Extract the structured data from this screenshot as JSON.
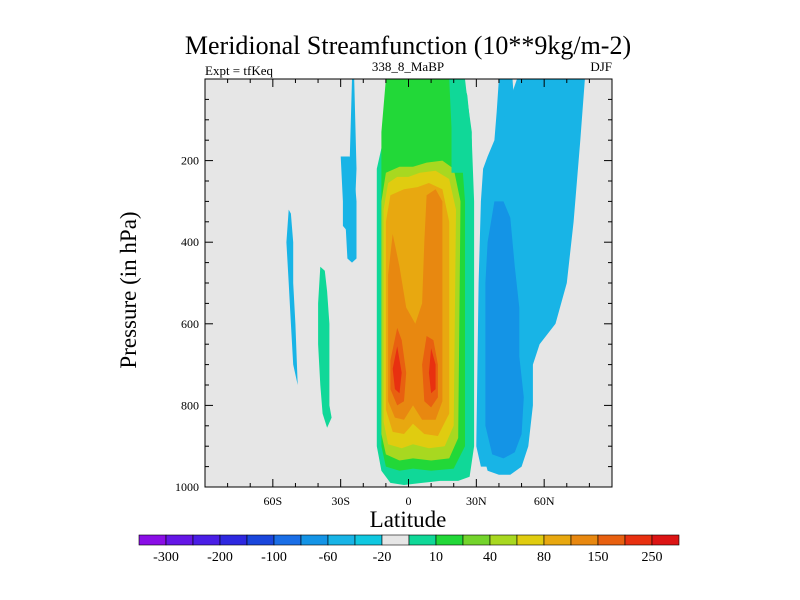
{
  "chart_data": {
    "type": "contour",
    "title": "Meridional Streamfunction (10**9kg/m-2)",
    "left_subtitle": "Expt = tfKeq",
    "center_subtitle": "338_8_MaBP",
    "right_subtitle": "DJF",
    "xlabel": "Latitude",
    "ylabel": "Pressure (in hPa)",
    "xlim": [
      -90,
      90
    ],
    "ylim": [
      1000,
      0
    ],
    "x_ticks": [
      {
        "value": -60,
        "label": "60S"
      },
      {
        "value": -30,
        "label": "30S"
      },
      {
        "value": 0,
        "label": "0"
      },
      {
        "value": 30,
        "label": "30N"
      },
      {
        "value": 60,
        "label": "60N"
      }
    ],
    "y_ticks": [
      {
        "value": 200,
        "label": "200"
      },
      {
        "value": 400,
        "label": "400"
      },
      {
        "value": 600,
        "label": "600"
      },
      {
        "value": 800,
        "label": "800"
      },
      {
        "value": 1000,
        "label": "1000"
      }
    ],
    "colorbar": {
      "colors": [
        "#8a0ee6",
        "#6416e6",
        "#4a1ee6",
        "#2e28e0",
        "#1a46dc",
        "#1a6ee6",
        "#1494e6",
        "#18b4e6",
        "#10c8e0",
        "#e6e6e6",
        "#10d898",
        "#22d838",
        "#74d42c",
        "#a8d820",
        "#e0cc10",
        "#e8a810",
        "#e88810",
        "#e86010",
        "#e83010",
        "#dc1414"
      ],
      "labels": [
        "-300",
        "-200",
        "-100",
        "-60",
        "-20",
        "10",
        "40",
        "80",
        "150",
        "250"
      ]
    },
    "regions": [
      {
        "value_class": 10,
        "color": "#10d898",
        "points": [
          [
            -2,
            0
          ],
          [
            -4,
            60
          ],
          [
            -10,
            120
          ],
          [
            -12,
            170
          ],
          [
            -14,
            220
          ],
          [
            -14,
            900
          ],
          [
            -12,
            960
          ],
          [
            -8,
            990
          ],
          [
            -2,
            995
          ],
          [
            6,
            990
          ],
          [
            14,
            985
          ],
          [
            22,
            985
          ],
          [
            27,
            975
          ],
          [
            29,
            900
          ],
          [
            29,
            300
          ],
          [
            28,
            150
          ],
          [
            26,
            40
          ],
          [
            24,
            0
          ]
        ]
      },
      {
        "value_class": 10,
        "color": "#10d898",
        "points": [
          [
            -39,
            460
          ],
          [
            -37,
            470
          ],
          [
            -36,
            520
          ],
          [
            -35,
            600
          ],
          [
            -35,
            700
          ],
          [
            -35,
            800
          ],
          [
            -34,
            830
          ],
          [
            -36,
            855
          ],
          [
            -38,
            820
          ],
          [
            -39,
            750
          ],
          [
            -40,
            650
          ],
          [
            -40,
            550
          ]
        ]
      },
      {
        "value_class": 40,
        "color": "#22d838",
        "points": [
          [
            -10,
            0
          ],
          [
            -12,
            130
          ],
          [
            -12,
            230
          ],
          [
            -12,
            900
          ],
          [
            -10,
            950
          ],
          [
            -4,
            960
          ],
          [
            2,
            955
          ],
          [
            10,
            960
          ],
          [
            20,
            955
          ],
          [
            25,
            900
          ],
          [
            25,
            300
          ],
          [
            23,
            150
          ],
          [
            20,
            60
          ],
          [
            18,
            0
          ]
        ]
      },
      {
        "value_class": 80,
        "color": "#a8d820",
        "points": [
          [
            -10,
            230
          ],
          [
            -12,
            300
          ],
          [
            -12,
            870
          ],
          [
            -10,
            920
          ],
          [
            -4,
            935
          ],
          [
            2,
            930
          ],
          [
            10,
            935
          ],
          [
            18,
            930
          ],
          [
            22,
            880
          ],
          [
            23,
            300
          ],
          [
            20,
            220
          ],
          [
            15,
            200
          ],
          [
            8,
            205
          ],
          [
            2,
            215
          ],
          [
            -4,
            215
          ]
        ]
      },
      {
        "value_class": 80,
        "color": "#e0cc10",
        "points": [
          [
            -9,
            255
          ],
          [
            -11,
            320
          ],
          [
            -11,
            840
          ],
          [
            -9,
            895
          ],
          [
            -3,
            905
          ],
          [
            2,
            895
          ],
          [
            9,
            905
          ],
          [
            16,
            900
          ],
          [
            20,
            850
          ],
          [
            21,
            320
          ],
          [
            18,
            245
          ],
          [
            12,
            225
          ],
          [
            5,
            230
          ],
          [
            0,
            240
          ],
          [
            -5,
            240
          ]
        ]
      },
      {
        "value_class": 150,
        "color": "#e8a810",
        "points": [
          [
            -8,
            285
          ],
          [
            -10,
            350
          ],
          [
            -10,
            810
          ],
          [
            -7,
            865
          ],
          [
            -2,
            870
          ],
          [
            2,
            845
          ],
          [
            7,
            870
          ],
          [
            13,
            875
          ],
          [
            18,
            820
          ],
          [
            18,
            350
          ],
          [
            15,
            270
          ],
          [
            9,
            255
          ],
          [
            4,
            265
          ],
          [
            -2,
            270
          ]
        ]
      },
      {
        "value_class": 150,
        "color": "#e88810",
        "points": [
          [
            -7,
            380
          ],
          [
            -9,
            480
          ],
          [
            -9,
            790
          ],
          [
            -6,
            830
          ],
          [
            -2,
            835
          ],
          [
            2,
            800
          ],
          [
            6,
            835
          ],
          [
            12,
            835
          ],
          [
            15,
            790
          ],
          [
            15,
            300
          ],
          [
            12,
            270
          ],
          [
            8,
            285
          ],
          [
            7,
            400
          ],
          [
            6,
            550
          ],
          [
            3,
            600
          ],
          [
            -1,
            560
          ],
          [
            -4,
            460
          ]
        ]
      },
      {
        "value_class": 250,
        "color": "#e86010",
        "points": [
          [
            -5,
            610
          ],
          [
            -8,
            690
          ],
          [
            -8,
            760
          ],
          [
            -5,
            800
          ],
          [
            -2,
            790
          ],
          [
            -1,
            720
          ],
          [
            -3,
            640
          ]
        ]
      },
      {
        "value_class": 250,
        "color": "#e86010",
        "points": [
          [
            8,
            630
          ],
          [
            6,
            700
          ],
          [
            7,
            790
          ],
          [
            10,
            805
          ],
          [
            13,
            780
          ],
          [
            13,
            700
          ],
          [
            11,
            640
          ]
        ]
      },
      {
        "value_class": 250,
        "color": "#e83010",
        "points": [
          [
            -5,
            655
          ],
          [
            -7,
            710
          ],
          [
            -6,
            760
          ],
          [
            -4,
            770
          ],
          [
            -3,
            720
          ]
        ]
      },
      {
        "value_class": 250,
        "color": "#e83010",
        "points": [
          [
            10,
            660
          ],
          [
            9,
            720
          ],
          [
            10,
            770
          ],
          [
            12,
            760
          ],
          [
            12,
            700
          ]
        ]
      },
      {
        "value_class": 10,
        "color": "#10d898",
        "points": [
          [
            18,
            0
          ],
          [
            19,
            120
          ],
          [
            19,
            230
          ],
          [
            28,
            230
          ],
          [
            28,
            130
          ],
          [
            26,
            50
          ],
          [
            25,
            0
          ]
        ]
      },
      {
        "value_class": -20,
        "color": "#18b4e6",
        "points": [
          [
            46,
            0
          ],
          [
            47,
            80
          ],
          [
            48,
            200
          ],
          [
            48,
            300
          ],
          [
            48,
            400
          ],
          [
            50,
            470
          ],
          [
            50,
            560
          ],
          [
            51,
            660
          ],
          [
            50,
            760
          ],
          [
            50,
            860
          ],
          [
            47,
            930
          ],
          [
            40,
            950
          ],
          [
            32,
            950
          ],
          [
            30,
            900
          ],
          [
            31,
            500
          ],
          [
            32,
            300
          ],
          [
            33,
            220
          ],
          [
            35,
            190
          ],
          [
            38,
            150
          ],
          [
            39,
            80
          ],
          [
            40,
            0
          ],
          [
            45,
            0
          ]
        ]
      },
      {
        "value_class": -20,
        "color": "#18b4e6",
        "points": [
          [
            78,
            0
          ],
          [
            76,
            150
          ],
          [
            73,
            350
          ],
          [
            70,
            500
          ],
          [
            65,
            600
          ],
          [
            58,
            650
          ],
          [
            55,
            700
          ],
          [
            55,
            800
          ],
          [
            53,
            900
          ],
          [
            50,
            950
          ],
          [
            45,
            970
          ],
          [
            40,
            970
          ],
          [
            35,
            960
          ],
          [
            32,
            900
          ],
          [
            32,
            500
          ],
          [
            33,
            300
          ],
          [
            36,
            200
          ],
          [
            40,
            150
          ],
          [
            43,
            80
          ],
          [
            48,
            0
          ]
        ]
      },
      {
        "value_class": -60,
        "color": "#1494e6",
        "points": [
          [
            38,
            300
          ],
          [
            35,
            400
          ],
          [
            34,
            500
          ],
          [
            34,
            700
          ],
          [
            34,
            850
          ],
          [
            37,
            920
          ],
          [
            42,
            930
          ],
          [
            47,
            915
          ],
          [
            50,
            870
          ],
          [
            51,
            780
          ],
          [
            49,
            680
          ],
          [
            49,
            560
          ],
          [
            47,
            460
          ],
          [
            45,
            340
          ],
          [
            42,
            300
          ]
        ]
      },
      {
        "value_class": -20,
        "color": "#18b4e6",
        "points": [
          [
            -25,
            0
          ],
          [
            -26,
            200
          ],
          [
            -28,
            260
          ],
          [
            -28,
            340
          ],
          [
            -27,
            440
          ],
          [
            -25,
            450
          ],
          [
            -24,
            360
          ],
          [
            -23,
            220
          ],
          [
            -24,
            0
          ]
        ]
      },
      {
        "value_class": -20,
        "color": "#18b4e6",
        "points": [
          [
            -30,
            190
          ],
          [
            -29,
            300
          ],
          [
            -29,
            360
          ],
          [
            -26,
            380
          ],
          [
            -25,
            450
          ],
          [
            -23,
            440
          ],
          [
            -23,
            300
          ],
          [
            -24,
            230
          ],
          [
            -26,
            190
          ]
        ]
      },
      {
        "value_class": -20,
        "color": "#18b4e6",
        "points": [
          [
            -53,
            320
          ],
          [
            -54,
            400
          ],
          [
            -53,
            500
          ],
          [
            -52,
            600
          ],
          [
            -51,
            700
          ],
          [
            -49,
            750
          ],
          [
            -50,
            600
          ],
          [
            -51,
            500
          ],
          [
            -51,
            400
          ],
          [
            -52,
            330
          ]
        ]
      }
    ]
  }
}
